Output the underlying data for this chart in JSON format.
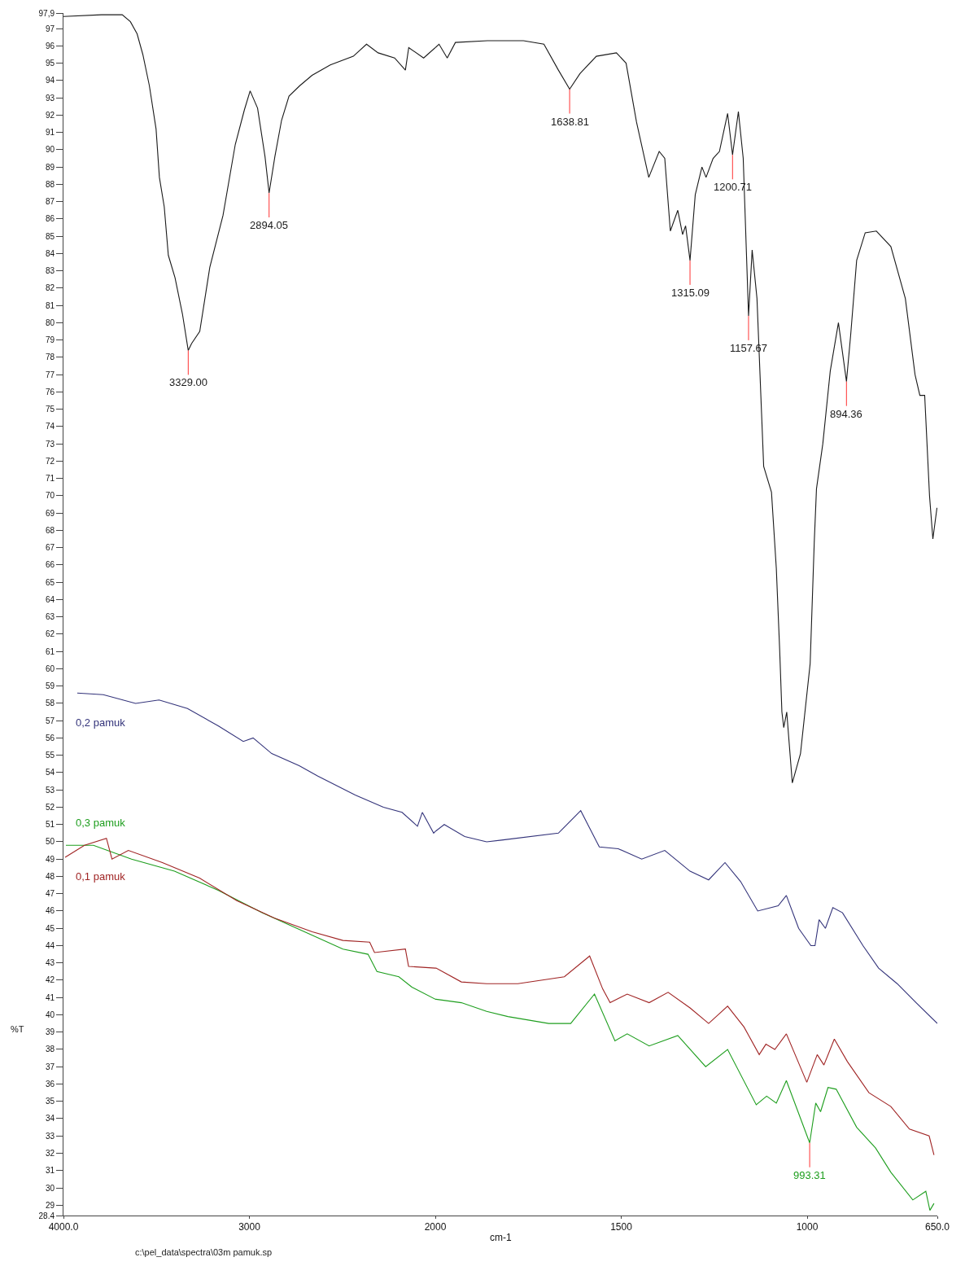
{
  "chart_data": [
    {
      "type": "line",
      "ylabel": "%T",
      "xlim": [
        4000,
        2000
      ],
      "xticks": [
        {
          "value": 4000,
          "label": "4000.0"
        },
        3000,
        2000
      ],
      "ylim": [
        28.4,
        97.9
      ],
      "marker": "none",
      "line_style": "solid",
      "yticks": [
        28.4,
        29,
        30,
        31,
        32,
        33,
        34,
        35,
        36,
        37,
        38,
        39,
        40,
        41,
        42,
        43,
        44,
        45,
        46,
        47,
        48,
        49,
        50,
        51,
        52,
        53,
        54,
        55,
        56,
        57,
        58,
        59,
        60,
        61,
        62,
        63,
        64,
        65,
        66,
        67,
        68,
        69,
        70,
        71,
        72,
        73,
        74,
        75,
        76,
        77,
        78,
        79,
        80,
        81,
        82,
        83,
        84,
        85,
        86,
        87,
        88,
        89,
        90,
        91,
        92,
        93,
        94,
        95,
        96,
        97,
        {
          "value": 97.9,
          "label": "97,9"
        }
      ],
      "series": [
        {
          "color": "#1a1a1a",
          "x": [
            4000,
            3795,
            3684,
            3640,
            3604,
            3573,
            3538,
            3502,
            3484,
            3458,
            3436,
            3400,
            3360,
            3329,
            3311,
            3267,
            3213,
            3142,
            3076,
            3027,
            2996,
            2956,
            2916,
            2894.05,
            2863,
            2827,
            2787,
            2729,
            2663,
            2565,
            2441,
            2370,
            2308,
            2219,
            2161,
            2143,
            2063,
            2000
          ],
          "values": [
            97.7,
            97.8,
            97.8,
            97.4,
            96.7,
            95.5,
            93.7,
            91.2,
            88.4,
            86.7,
            83.9,
            82.6,
            80.5,
            78.4,
            78.8,
            79.5,
            83.2,
            86.2,
            90.3,
            92.3,
            93.4,
            92.4,
            89.6,
            87.5,
            89.6,
            91.7,
            93.1,
            93.7,
            94.3,
            94.9,
            95.4,
            96.1,
            95.6,
            95.3,
            94.6,
            95.9,
            95.3,
            95.9
          ]
        },
        {
          "name": "0,2 pamuk",
          "color": "#33337a",
          "x": [
            3926,
            3786,
            3612,
            3486,
            3333,
            3168,
            3033,
            2980,
            2880,
            2732,
            2632,
            2431,
            2279,
            2179,
            2096,
            2070,
            2009,
            2000
          ],
          "values": [
            58.6,
            58.5,
            58.0,
            58.2,
            57.7,
            56.7,
            55.8,
            56.0,
            55.1,
            54.4,
            53.8,
            52.7,
            52.0,
            51.7,
            50.9,
            51.7,
            50.5,
            50.6
          ]
        },
        {
          "name": "0,3 pamuk",
          "color": "#1e9e1e",
          "x": [
            3987,
            3839,
            3634,
            3403,
            3168,
            2932,
            2662,
            2497,
            2362,
            2314,
            2196,
            2126,
            2000
          ],
          "values": [
            49.8,
            49.8,
            49.0,
            48.3,
            47.2,
            45.9,
            44.6,
            43.8,
            43.5,
            42.5,
            42.2,
            41.6,
            40.9
          ]
        },
        {
          "name": "0,1 pamuk",
          "color": "#a02424",
          "x": [
            3991,
            3887,
            3769,
            3739,
            3651,
            3468,
            3268,
            3068,
            2867,
            2662,
            2497,
            2353,
            2327,
            2161,
            2144,
            2000
          ],
          "values": [
            49.1,
            49.8,
            50.2,
            49.0,
            49.5,
            48.8,
            47.9,
            46.6,
            45.6,
            44.8,
            44.3,
            44.2,
            43.6,
            43.8,
            42.8,
            42.7
          ]
        }
      ],
      "annotations": [
        {
          "text": "3329.00",
          "x": 3329,
          "y": 78.4
        },
        {
          "text": "2894.05",
          "x": 2894.05,
          "y": 87.5
        },
        "c:\\pel_data\\spectra\\03m pamuk.sp"
      ]
    },
    {
      "type": "line",
      "xlabel": "cm-1",
      "tick_labels": "x",
      "xlim": [
        2000,
        650
      ],
      "xticks": [
        1500,
        1000,
        {
          "value": 650,
          "label": "650.0"
        }
      ],
      "ylim": [
        28.4,
        97.9
      ],
      "marker": "none",
      "line_style": "solid",
      "series": [
        {
          "color": "#1a1a1a",
          "x": [
            2000,
            1990,
            1968,
            1946,
            1860,
            1763,
            1708,
            1669,
            1638.81,
            1611,
            1567,
            1513,
            1487,
            1459,
            1426,
            1398,
            1383,
            1368,
            1348,
            1335,
            1327,
            1315.09,
            1301,
            1283,
            1272,
            1253,
            1236,
            1227,
            1214,
            1200.71,
            1185,
            1172,
            1157.67,
            1148,
            1135,
            1117,
            1096,
            1083,
            1074,
            1068,
            1063,
            1055,
            1040,
            1018,
            992,
            981,
            975,
            958,
            938,
            916,
            894.36,
            883,
            867,
            844,
            814,
            775,
            736,
            710,
            697,
            684,
            671,
            662,
            651
          ],
          "values": [
            95.9,
            96.1,
            95.3,
            96.2,
            96.3,
            96.3,
            96.1,
            94.6,
            93.5,
            94.4,
            95.4,
            95.6,
            95.0,
            91.6,
            88.4,
            89.9,
            89.5,
            85.3,
            86.5,
            85.1,
            85.6,
            83.6,
            87.4,
            89.0,
            88.4,
            89.5,
            89.9,
            90.8,
            92.1,
            89.7,
            92.2,
            89.5,
            80.4,
            84.2,
            81.4,
            71.7,
            70.2,
            65.8,
            61.1,
            57.5,
            56.6,
            57.5,
            53.4,
            55.1,
            60.3,
            67.3,
            70.4,
            73.0,
            77.2,
            80.0,
            76.6,
            79.3,
            83.6,
            85.2,
            85.3,
            84.4,
            81.4,
            77.0,
            75.8,
            75.8,
            70.0,
            67.5,
            69.3
          ]
        },
        {
          "color": "#33337a",
          "x": [
            2000,
            1976,
            1921,
            1862,
            1822,
            1669,
            1609,
            1559,
            1508,
            1445,
            1383,
            1315,
            1265,
            1221,
            1179,
            1133,
            1078,
            1056,
            1023,
            990,
            979,
            968,
            951,
            931,
            905,
            850,
            808,
            758,
            707,
            650
          ],
          "values": [
            50.6,
            51.0,
            50.3,
            50.0,
            50.1,
            50.5,
            51.8,
            49.7,
            49.6,
            49.0,
            49.5,
            48.3,
            47.8,
            48.8,
            47.7,
            46.0,
            46.3,
            46.9,
            45.0,
            44.0,
            44.0,
            45.5,
            45.0,
            46.2,
            45.9,
            44.0,
            42.7,
            41.8,
            40.7,
            39.5
          ]
        },
        {
          "color": "#1e9e1e",
          "x": [
            2000,
            1998,
            1930,
            1862,
            1805,
            1695,
            1636,
            1572,
            1517,
            1484,
            1425,
            1348,
            1273,
            1214,
            1137,
            1109,
            1083,
            1056,
            993.31,
            977,
            964,
            944,
            922,
            867,
            816,
            775,
            716,
            681,
            670,
            659
          ],
          "values": [
            40.9,
            40.9,
            40.7,
            40.2,
            39.9,
            39.5,
            39.5,
            41.2,
            38.5,
            38.9,
            38.2,
            38.8,
            37.0,
            38.0,
            34.8,
            35.3,
            34.9,
            36.2,
            32.6,
            34.9,
            34.4,
            35.8,
            35.7,
            33.5,
            32.3,
            30.9,
            29.3,
            29.8,
            28.7,
            29.1
          ]
        },
        {
          "color": "#a02424",
          "x": [
            2000,
            1998,
            1930,
            1862,
            1778,
            1653,
            1585,
            1550,
            1530,
            1484,
            1425,
            1374,
            1315,
            1265,
            1214,
            1170,
            1129,
            1111,
            1087,
            1056,
            1001,
            973,
            955,
            927,
            892,
            834,
            775,
            725,
            672,
            659
          ],
          "values": [
            42.7,
            42.7,
            41.9,
            41.8,
            41.8,
            42.2,
            43.4,
            41.5,
            40.7,
            41.2,
            40.7,
            41.3,
            40.4,
            39.5,
            40.5,
            39.3,
            37.7,
            38.3,
            38.0,
            38.9,
            36.1,
            37.7,
            37.1,
            38.6,
            37.3,
            35.5,
            34.7,
            33.4,
            33.0,
            31.9
          ]
        }
      ],
      "annotations": [
        {
          "text": "1638.81",
          "x": 1638.81,
          "y": 93.5
        },
        {
          "text": "1315.09",
          "x": 1315.09,
          "y": 83.6
        },
        {
          "text": "1200.71",
          "x": 1200.71,
          "y": 89.7
        },
        {
          "text": "1157.67",
          "x": 1157.67,
          "y": 80.4
        },
        {
          "text": "894.36",
          "x": 894.36,
          "y": 76.6
        },
        {
          "text": "993.31",
          "x": 993.31,
          "y": 32.6
        }
      ]
    }
  ]
}
